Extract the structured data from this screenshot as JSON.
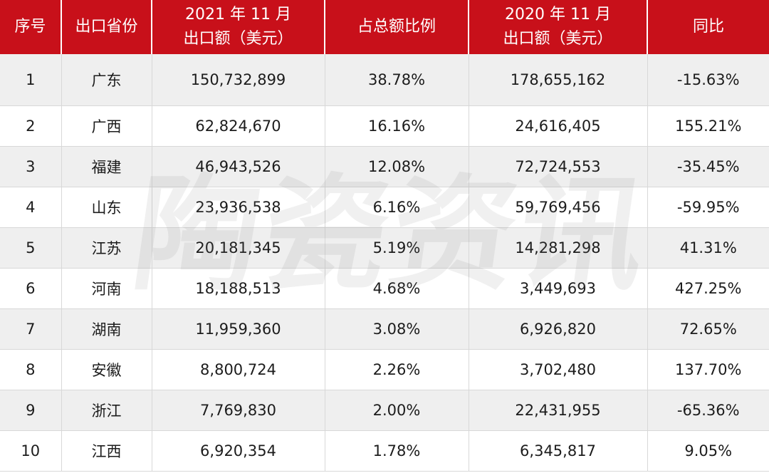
{
  "table": {
    "headers": {
      "rank": "序号",
      "province": "出口省份",
      "exp2021_line1": "2021 年 11 月",
      "exp2021_line2": "出口额（美元）",
      "share": "占总额比例",
      "exp2020_line1": "2020 年 11 月",
      "exp2020_line2": "出口额（美元）",
      "yoy": "同比"
    },
    "rows": [
      {
        "rank": "1",
        "province": "广东",
        "exp2021": "150,732,899",
        "share": "38.78%",
        "exp2020": "178,655,162",
        "yoy": "-15.63%"
      },
      {
        "rank": "2",
        "province": "广西",
        "exp2021": "62,824,670",
        "share": "16.16%",
        "exp2020": "24,616,405",
        "yoy": "155.21%"
      },
      {
        "rank": "3",
        "province": "福建",
        "exp2021": "46,943,526",
        "share": "12.08%",
        "exp2020": "72,724,553",
        "yoy": "-35.45%"
      },
      {
        "rank": "4",
        "province": "山东",
        "exp2021": "23,936,538",
        "share": "6.16%",
        "exp2020": "59,769,456",
        "yoy": "-59.95%"
      },
      {
        "rank": "5",
        "province": "江苏",
        "exp2021": "20,181,345",
        "share": "5.19%",
        "exp2020": "14,281,298",
        "yoy": "41.31%"
      },
      {
        "rank": "6",
        "province": "河南",
        "exp2021": "18,188,513",
        "share": "4.68%",
        "exp2020": "3,449,693",
        "yoy": "427.25%"
      },
      {
        "rank": "7",
        "province": "湖南",
        "exp2021": "11,959,360",
        "share": "3.08%",
        "exp2020": "6,926,820",
        "yoy": "72.65%"
      },
      {
        "rank": "8",
        "province": "安徽",
        "exp2021": "8,800,724",
        "share": "2.26%",
        "exp2020": "3,702,480",
        "yoy": "137.70%"
      },
      {
        "rank": "9",
        "province": "浙江",
        "exp2021": "7,769,830",
        "share": "2.00%",
        "exp2020": "22,431,955",
        "yoy": "-65.36%"
      },
      {
        "rank": "10",
        "province": "江西",
        "exp2021": "6,920,354",
        "share": "1.78%",
        "exp2020": "6,345,817",
        "yoy": "9.05%"
      }
    ]
  },
  "watermark": {
    "chars": [
      "陶",
      "瓷",
      "资",
      "讯"
    ],
    "color": "#787878"
  },
  "colors": {
    "header_bg": "#c8101a",
    "header_text": "#ffffff",
    "zebra_row": "#efefef"
  }
}
